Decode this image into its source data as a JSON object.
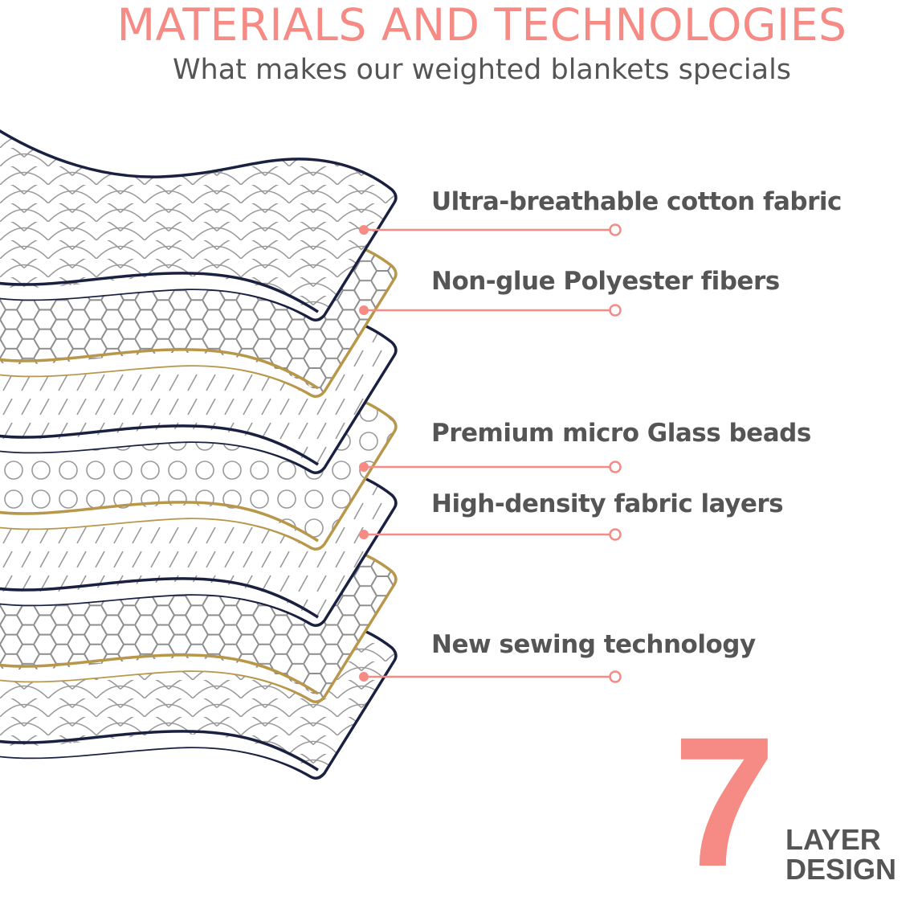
{
  "header": {
    "title": "MATERIALS AND TECHNOLOGIES",
    "subtitle": "What makes our weighted blankets specials"
  },
  "layers": [
    {
      "pattern": "scallop",
      "edge_color": "#1a2040"
    },
    {
      "pattern": "hexagon",
      "edge_color": "#b8964a"
    },
    {
      "pattern": "dashes",
      "edge_color": "#1a2040"
    },
    {
      "pattern": "circles",
      "edge_color": "#b8964a"
    },
    {
      "pattern": "dashes",
      "edge_color": "#1a2040"
    },
    {
      "pattern": "hexagon",
      "edge_color": "#b8964a"
    },
    {
      "pattern": "scallop",
      "edge_color": "#1a2040"
    }
  ],
  "labels": [
    {
      "text": "Ultra-breathable cotton fabric"
    },
    {
      "text": "Non-glue Polyester fibers"
    },
    {
      "text": "Premium micro Glass beads"
    },
    {
      "text": "High-density fabric layers"
    },
    {
      "text": "New sewing technology"
    }
  ],
  "badge": {
    "number": "7",
    "line1": "LAYER",
    "line2": "DESIGN"
  },
  "colors": {
    "accent": "#f68a84",
    "text": "#555555",
    "navy": "#1a2040",
    "gold": "#b8964a",
    "pattern": "#999999"
  }
}
